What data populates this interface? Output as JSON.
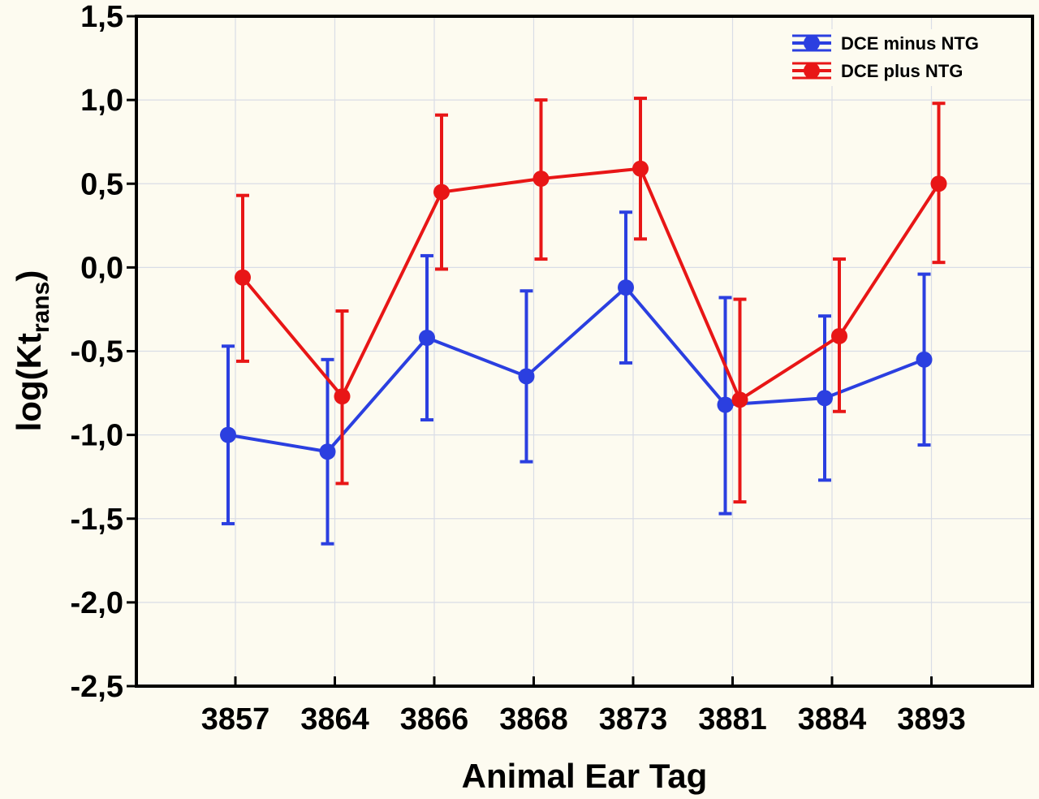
{
  "chart_data": {
    "type": "line",
    "xlabel": "Animal Ear Tag",
    "ylabel_main": "log(Kt",
    "ylabel_sub": "rans",
    "ylabel_close": ")",
    "categories": [
      "3857",
      "3864",
      "3866",
      "3868",
      "3873",
      "3881",
      "3884",
      "3893"
    ],
    "ylim": [
      -2.5,
      1.5
    ],
    "yticks": [
      1.5,
      1.0,
      0.5,
      0.0,
      -0.5,
      -1.0,
      -1.5,
      -2.0,
      -2.5
    ],
    "ytick_labels": [
      "1,5",
      "1,0",
      "0,5",
      "0,0",
      "-0,5",
      "-1,0",
      "-1,5",
      "-2,0",
      "-2,5"
    ],
    "grid": true,
    "legend_position": "top-right",
    "series": [
      {
        "name": "DCE minus NTG",
        "color": "#2b3fe0",
        "values": [
          -1.0,
          -1.1,
          -0.42,
          -0.65,
          -0.12,
          -0.82,
          -0.78,
          -0.55
        ],
        "lower": [
          -1.53,
          -1.65,
          -0.91,
          -1.16,
          -0.57,
          -1.47,
          -1.27,
          -1.06
        ],
        "upper": [
          -0.47,
          -0.55,
          0.07,
          -0.14,
          0.33,
          -0.18,
          -0.29,
          -0.04
        ]
      },
      {
        "name": "DCE plus NTG",
        "color": "#e81616",
        "values": [
          -0.06,
          -0.77,
          0.45,
          0.53,
          0.59,
          -0.79,
          -0.41,
          0.5
        ],
        "lower": [
          -0.56,
          -1.29,
          -0.01,
          0.05,
          0.17,
          -1.4,
          -0.86,
          0.03
        ],
        "upper": [
          0.43,
          -0.26,
          0.91,
          1.0,
          1.01,
          -0.19,
          0.05,
          0.98
        ]
      }
    ]
  }
}
